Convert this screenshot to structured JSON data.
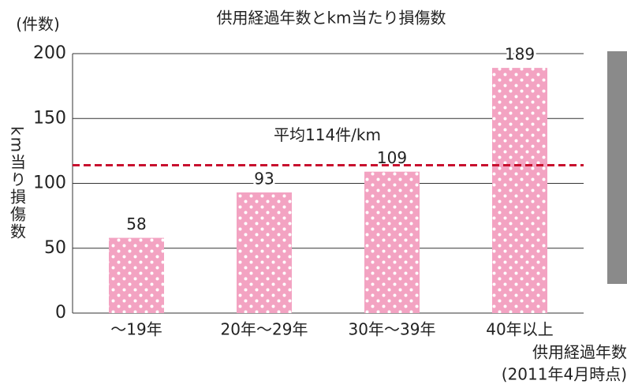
{
  "chart_data": {
    "type": "bar",
    "title": "供用経過年数とkm当たり損傷数",
    "y_unit": "(件数)",
    "y_label": "km当り損傷数",
    "x_label": "供用経過年数",
    "note": "(2011年4月時点)",
    "categories": [
      "～19年",
      "20年～29年",
      "30年～39年",
      "40年以上"
    ],
    "values": [
      58,
      93,
      109,
      189
    ],
    "color": "#f3a3c2",
    "ylim": [
      0,
      200
    ],
    "yticks": [
      0,
      50,
      100,
      150,
      200
    ],
    "grid": true,
    "reference_line": {
      "value": 114,
      "label": "平均114件/km",
      "color": "#c8102e"
    }
  }
}
